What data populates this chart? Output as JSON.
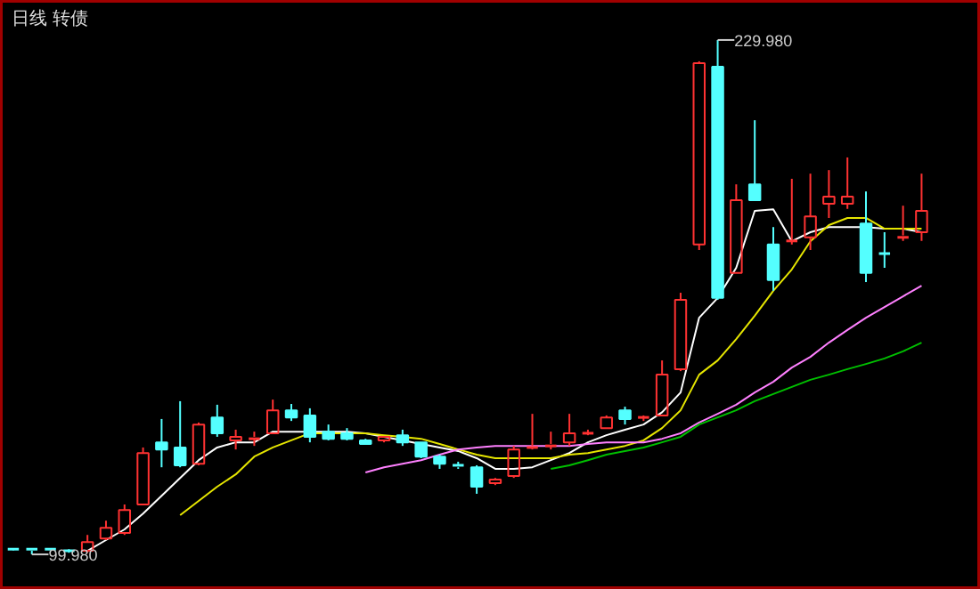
{
  "chart_data": {
    "type": "candlestick",
    "title": "日线 转债",
    "categories": [
      null,
      null,
      null,
      null,
      null,
      null,
      null,
      null,
      null,
      null,
      null,
      null,
      null,
      null,
      null,
      null,
      null,
      null,
      null,
      null,
      null,
      null,
      null,
      null,
      null,
      null,
      null,
      null,
      null,
      null,
      null,
      null,
      null,
      null,
      null,
      null,
      null,
      null,
      null,
      null,
      null,
      null,
      null,
      null,
      null,
      null,
      null,
      null,
      null,
      null
    ],
    "ohlc": [
      [
        101.3,
        101.5,
        101.0,
        101.3
      ],
      [
        101.3,
        101.3,
        99.98,
        100.9
      ],
      [
        101.3,
        101.3,
        100.9,
        100.9
      ],
      [
        100.9,
        101.3,
        100.4,
        100.9
      ],
      [
        100.9,
        104.9,
        100.4,
        103.1
      ],
      [
        104.0,
        108.5,
        103.6,
        106.7
      ],
      [
        105.4,
        112.6,
        104.9,
        111.2
      ],
      [
        112.6,
        127.0,
        112.6,
        125.6
      ],
      [
        128.3,
        134.2,
        122.0,
        126.5
      ],
      [
        127.0,
        138.7,
        122.0,
        122.5
      ],
      [
        122.9,
        133.3,
        122.5,
        132.8
      ],
      [
        134.6,
        137.8,
        129.7,
        130.6
      ],
      [
        128.8,
        131.5,
        126.5,
        129.7
      ],
      [
        129.2,
        131.0,
        127.4,
        129.7
      ],
      [
        130.6,
        139.1,
        130.6,
        136.4
      ],
      [
        136.4,
        138.0,
        133.7,
        134.6
      ],
      [
        135.1,
        136.9,
        128.3,
        129.7
      ],
      [
        131.0,
        132.8,
        128.8,
        129.2
      ],
      [
        130.6,
        131.9,
        128.8,
        129.2
      ],
      [
        128.8,
        129.2,
        127.9,
        127.9
      ],
      [
        128.8,
        129.7,
        128.3,
        129.7
      ],
      [
        130.1,
        131.5,
        127.4,
        128.3
      ],
      [
        128.3,
        128.3,
        124.3,
        124.7
      ],
      [
        124.7,
        125.2,
        121.6,
        122.9
      ],
      [
        122.5,
        123.4,
        121.6,
        122.0
      ],
      [
        122.0,
        122.5,
        115.3,
        117.1
      ],
      [
        118.0,
        119.3,
        117.5,
        118.9
      ],
      [
        119.8,
        127.4,
        119.3,
        126.5
      ],
      [
        127.0,
        135.5,
        126.5,
        127.4
      ],
      [
        127.4,
        131.0,
        126.5,
        127.9
      ],
      [
        128.3,
        135.5,
        127.4,
        130.6
      ],
      [
        130.6,
        131.5,
        130.1,
        130.6
      ],
      [
        131.9,
        135.1,
        131.9,
        134.6
      ],
      [
        136.4,
        137.3,
        132.8,
        134.2
      ],
      [
        134.6,
        135.1,
        133.7,
        134.6
      ],
      [
        135.1,
        149.0,
        135.1,
        145.4
      ],
      [
        146.8,
        166.1,
        146.3,
        164.3
      ],
      [
        178.3,
        224.6,
        176.9,
        224.1
      ],
      [
        223.2,
        229.98,
        164.3,
        164.8
      ],
      [
        171.1,
        193.5,
        171.1,
        189.5
      ],
      [
        193.5,
        209.7,
        189.5,
        189.5
      ],
      [
        178.3,
        182.7,
        166.6,
        169.3
      ],
      [
        179.2,
        194.9,
        178.3,
        179.6
      ],
      [
        180.1,
        196.2,
        176.9,
        185.4
      ],
      [
        188.6,
        197.1,
        185.0,
        190.4
      ],
      [
        188.6,
        200.3,
        187.3,
        190.4
      ],
      [
        183.6,
        191.7,
        168.8,
        171.1
      ],
      [
        176.0,
        181.4,
        172.4,
        176.0
      ],
      [
        180.1,
        188.1,
        179.2,
        180.6
      ],
      [
        181.4,
        196.2,
        179.2,
        186.8
      ]
    ],
    "colors": [
      "#54ffff",
      "#54ffff",
      "#54ffff",
      "#54ffff",
      "#ff3232",
      "#ff3232",
      "#ff3232",
      "#ff3232",
      "#54ffff",
      "#54ffff",
      "#ff3232",
      "#54ffff",
      "#ff3232",
      "#ff3232",
      "#ff3232",
      "#54ffff",
      "#54ffff",
      "#54ffff",
      "#54ffff",
      "#54ffff",
      "#ff3232",
      "#54ffff",
      "#54ffff",
      "#54ffff",
      "#54ffff",
      "#54ffff",
      "#ff3232",
      "#ff3232",
      "#ff3232",
      "#ff3232",
      "#ff3232",
      "#ff3232",
      "#ff3232",
      "#54ffff",
      "#ff3232",
      "#ff3232",
      "#ff3232",
      "#ff3232",
      "#54ffff",
      "#ff3232",
      "#54ffff",
      "#54ffff",
      "#ff3232",
      "#ff3232",
      "#ff3232",
      "#ff3232",
      "#54ffff",
      "#54ffff",
      "#ff3232",
      "#ff3232"
    ],
    "series": [
      {
        "type": "line",
        "color": "#ffffff",
        "values": [
          null,
          null,
          null,
          null,
          100.9,
          103.6,
          106.3,
          110.3,
          114.8,
          119.3,
          123.8,
          127.0,
          128.3,
          128.3,
          131.0,
          131.0,
          131.0,
          131.0,
          131.0,
          130.6,
          129.7,
          128.8,
          127.9,
          127.0,
          126.1,
          124.3,
          121.6,
          121.6,
          122.0,
          123.8,
          125.6,
          128.3,
          130.1,
          131.5,
          132.8,
          135.9,
          140.9,
          159.8,
          164.8,
          172.4,
          186.8,
          187.2,
          179.1,
          181.4,
          182.7,
          182.7,
          182.7,
          182.3,
          182.3,
          181.4
        ]
      },
      {
        "type": "line",
        "color": "#e6e600",
        "values": [
          null,
          null,
          null,
          null,
          null,
          null,
          null,
          null,
          null,
          109.9,
          113.5,
          117.1,
          120.2,
          124.7,
          127.0,
          128.8,
          130.6,
          130.6,
          130.6,
          130.6,
          130.1,
          129.7,
          129.2,
          127.9,
          126.5,
          125.2,
          124.3,
          124.3,
          124.3,
          124.3,
          125.2,
          125.6,
          126.5,
          127.4,
          128.8,
          131.9,
          136.4,
          145.4,
          149.0,
          154.4,
          160.3,
          166.6,
          172.0,
          179.1,
          183.2,
          185.0,
          185.0,
          182.3,
          182.3,
          182.3
        ]
      },
      {
        "type": "line",
        "color": "#ff80ff",
        "values": [
          null,
          null,
          null,
          null,
          null,
          null,
          null,
          null,
          null,
          null,
          null,
          null,
          null,
          null,
          null,
          null,
          null,
          null,
          null,
          120.7,
          122.0,
          122.9,
          123.8,
          125.2,
          126.5,
          127.0,
          127.4,
          127.4,
          127.4,
          127.4,
          127.4,
          127.9,
          128.3,
          128.3,
          128.3,
          129.2,
          130.6,
          133.3,
          135.5,
          137.8,
          140.9,
          143.6,
          147.2,
          149.9,
          153.5,
          156.7,
          159.8,
          162.5,
          165.2,
          167.9
        ]
      },
      {
        "type": "line",
        "color": "#00c000",
        "values": [
          null,
          null,
          null,
          null,
          null,
          null,
          null,
          null,
          null,
          null,
          null,
          null,
          null,
          null,
          null,
          null,
          null,
          null,
          null,
          null,
          null,
          null,
          null,
          null,
          null,
          null,
          null,
          null,
          null,
          121.6,
          122.5,
          123.8,
          125.2,
          126.1,
          127.0,
          128.3,
          129.7,
          132.8,
          134.6,
          136.4,
          138.7,
          140.5,
          142.3,
          144.1,
          145.4,
          146.8,
          148.1,
          149.5,
          151.3,
          153.5
        ]
      }
    ],
    "annotations": [
      "229.980",
      "99.980"
    ]
  }
}
